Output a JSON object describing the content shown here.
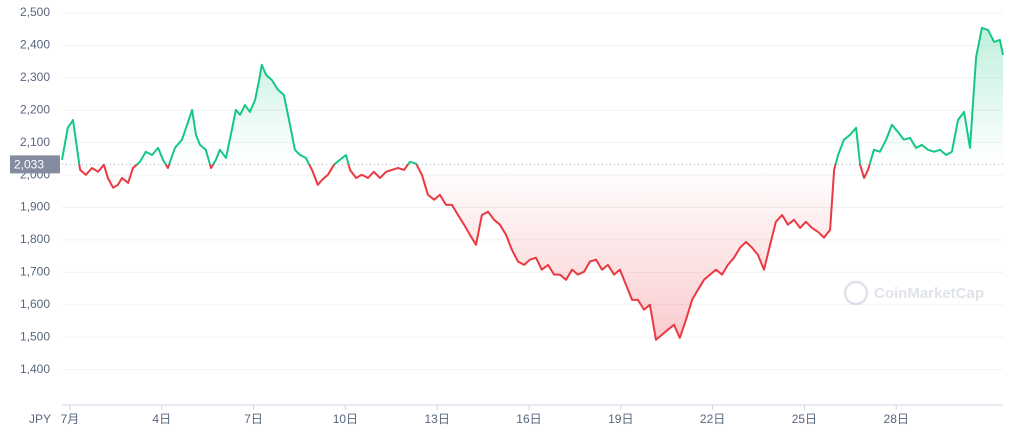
{
  "chart_data": {
    "type": "line",
    "currency": "JPY",
    "watermark": "CoinMarketCap",
    "baseline": {
      "value": 2033,
      "label": "2,033"
    },
    "colors": {
      "up": "#16c784",
      "down": "#ea3943"
    },
    "grid": true,
    "xlim": [
      0.74,
      31.49
    ],
    "ylim": [
      1300,
      2500
    ],
    "xticks": [
      {
        "value": 1,
        "label": "7月"
      },
      {
        "value": 4,
        "label": "4日"
      },
      {
        "value": 7,
        "label": "7日"
      },
      {
        "value": 10,
        "label": "10日"
      },
      {
        "value": 13,
        "label": "13日"
      },
      {
        "value": 16,
        "label": "16日"
      },
      {
        "value": 19,
        "label": "19日"
      },
      {
        "value": 22,
        "label": "22日"
      },
      {
        "value": 25,
        "label": "25日"
      },
      {
        "value": 28,
        "label": "28日"
      }
    ],
    "yticks": [
      {
        "value": 1400,
        "label": "1,400"
      },
      {
        "value": 1500,
        "label": "1,500"
      },
      {
        "value": 1600,
        "label": "1,600"
      },
      {
        "value": 1700,
        "label": "1,700"
      },
      {
        "value": 1800,
        "label": "1,800"
      },
      {
        "value": 1900,
        "label": "1,900"
      },
      {
        "value": 2000,
        "label": "2,000"
      },
      {
        "value": 2100,
        "label": "2,100"
      },
      {
        "value": 2200,
        "label": "2,200"
      },
      {
        "value": 2300,
        "label": "2,300"
      },
      {
        "value": 2400,
        "label": "2,400"
      },
      {
        "value": 2500,
        "label": "2,500"
      }
    ],
    "x": [
      0.74,
      0.93,
      1.1,
      1.33,
      1.52,
      1.72,
      1.92,
      2.11,
      2.24,
      2.41,
      2.57,
      2.7,
      2.9,
      3.06,
      3.29,
      3.48,
      3.68,
      3.88,
      4.04,
      4.2,
      4.43,
      4.66,
      4.86,
      4.99,
      5.12,
      5.25,
      5.44,
      5.61,
      5.77,
      5.9,
      6.1,
      6.29,
      6.42,
      6.56,
      6.72,
      6.88,
      7.05,
      7.18,
      7.27,
      7.41,
      7.6,
      7.8,
      7.99,
      8.19,
      8.35,
      8.52,
      8.71,
      8.91,
      9.1,
      9.24,
      9.43,
      9.63,
      9.82,
      10.02,
      10.15,
      10.35,
      10.54,
      10.74,
      10.93,
      11.13,
      11.33,
      11.52,
      11.72,
      11.92,
      12.11,
      12.31,
      12.5,
      12.7,
      12.9,
      13.09,
      13.29,
      13.48,
      13.68,
      13.88,
      14.07,
      14.27,
      14.46,
      14.66,
      14.86,
      15.05,
      15.25,
      15.44,
      15.64,
      15.84,
      16.03,
      16.23,
      16.42,
      16.62,
      16.82,
      17.01,
      17.21,
      17.41,
      17.6,
      17.8,
      17.99,
      18.19,
      18.39,
      18.58,
      18.78,
      18.97,
      19.17,
      19.37,
      19.56,
      19.76,
      19.95,
      20.15,
      20.35,
      20.54,
      20.74,
      20.93,
      21.13,
      21.33,
      21.52,
      21.72,
      21.92,
      22.11,
      22.31,
      22.5,
      22.7,
      22.9,
      23.09,
      23.29,
      23.48,
      23.68,
      23.88,
      24.07,
      24.27,
      24.46,
      24.66,
      24.86,
      25.05,
      25.25,
      25.44,
      25.64,
      25.84,
      25.97,
      26.1,
      26.29,
      26.49,
      26.69,
      26.82,
      26.95,
      27.08,
      27.27,
      27.47,
      27.67,
      27.86,
      28.06,
      28.25,
      28.45,
      28.65,
      28.84,
      29.04,
      29.24,
      29.43,
      29.63,
      29.82,
      30.02,
      30.22,
      30.41,
      30.61,
      30.8,
      31.0,
      31.2,
      31.39,
      31.49
    ],
    "values": [
      2047,
      2146,
      2170,
      2016,
      2001,
      2022,
      2010,
      2032,
      1991,
      1961,
      1970,
      1991,
      1976,
      2022,
      2041,
      2072,
      2062,
      2084,
      2047,
      2022,
      2084,
      2109,
      2164,
      2201,
      2124,
      2093,
      2078,
      2022,
      2047,
      2078,
      2053,
      2139,
      2201,
      2186,
      2216,
      2195,
      2232,
      2293,
      2340,
      2309,
      2293,
      2263,
      2247,
      2155,
      2078,
      2062,
      2053,
      2016,
      1970,
      1985,
      2001,
      2032,
      2047,
      2062,
      2016,
      1991,
      2001,
      1991,
      2010,
      1991,
      2010,
      2016,
      2022,
      2016,
      2041,
      2035,
      2001,
      1939,
      1924,
      1939,
      1908,
      1908,
      1877,
      1847,
      1816,
      1785,
      1877,
      1887,
      1862,
      1847,
      1816,
      1770,
      1733,
      1723,
      1739,
      1745,
      1708,
      1723,
      1693,
      1693,
      1677,
      1708,
      1693,
      1702,
      1733,
      1739,
      1708,
      1723,
      1693,
      1708,
      1662,
      1615,
      1615,
      1585,
      1600,
      1492,
      1508,
      1523,
      1538,
      1498,
      1554,
      1615,
      1646,
      1677,
      1693,
      1708,
      1693,
      1723,
      1745,
      1776,
      1794,
      1776,
      1754,
      1708,
      1785,
      1856,
      1877,
      1847,
      1862,
      1837,
      1856,
      1837,
      1825,
      1807,
      1831,
      2016,
      2062,
      2109,
      2124,
      2146,
      2032,
      1991,
      2016,
      2078,
      2072,
      2109,
      2155,
      2133,
      2109,
      2115,
      2084,
      2093,
      2078,
      2072,
      2078,
      2062,
      2072,
      2170,
      2195,
      2084,
      2364,
      2454,
      2448,
      2411,
      2417,
      2371
    ]
  }
}
